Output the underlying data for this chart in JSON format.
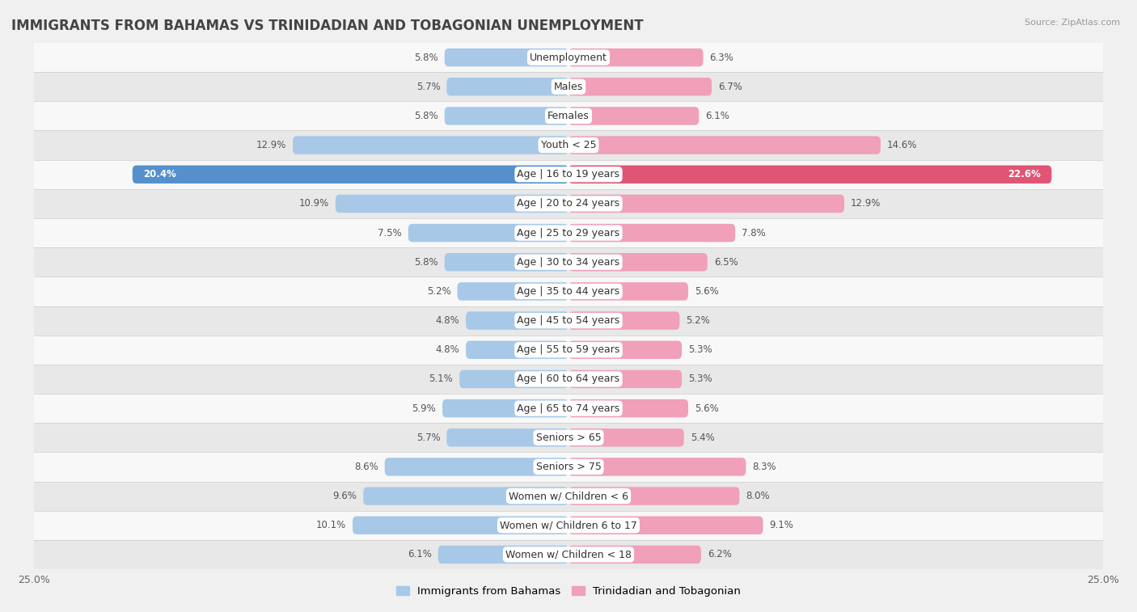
{
  "title": "IMMIGRANTS FROM BAHAMAS VS TRINIDADIAN AND TOBAGONIAN UNEMPLOYMENT",
  "source": "Source: ZipAtlas.com",
  "categories": [
    "Unemployment",
    "Males",
    "Females",
    "Youth < 25",
    "Age | 16 to 19 years",
    "Age | 20 to 24 years",
    "Age | 25 to 29 years",
    "Age | 30 to 34 years",
    "Age | 35 to 44 years",
    "Age | 45 to 54 years",
    "Age | 55 to 59 years",
    "Age | 60 to 64 years",
    "Age | 65 to 74 years",
    "Seniors > 65",
    "Seniors > 75",
    "Women w/ Children < 6",
    "Women w/ Children 6 to 17",
    "Women w/ Children < 18"
  ],
  "left_values": [
    5.8,
    5.7,
    5.8,
    12.9,
    20.4,
    10.9,
    7.5,
    5.8,
    5.2,
    4.8,
    4.8,
    5.1,
    5.9,
    5.7,
    8.6,
    9.6,
    10.1,
    6.1
  ],
  "right_values": [
    6.3,
    6.7,
    6.1,
    14.6,
    22.6,
    12.9,
    7.8,
    6.5,
    5.6,
    5.2,
    5.3,
    5.3,
    5.6,
    5.4,
    8.3,
    8.0,
    9.1,
    6.2
  ],
  "left_color": "#a8c8e8",
  "right_color": "#f0a0b8",
  "highlight_left_color": "#5590cc",
  "highlight_right_color": "#e05575",
  "highlight_row": 4,
  "xlim": 25.0,
  "legend_left": "Immigrants from Bahamas",
  "legend_right": "Trinidadian and Tobagonian",
  "bg_color": "#f0f0f0",
  "row_bg_odd": "#f8f8f8",
  "row_bg_even": "#e8e8e8",
  "bar_height": 0.62,
  "title_fontsize": 12,
  "label_fontsize": 9,
  "value_fontsize": 8.5
}
